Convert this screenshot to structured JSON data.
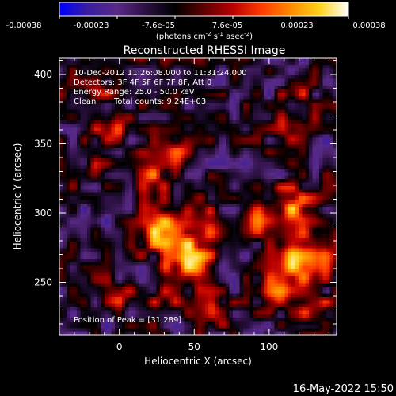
{
  "colorbar": {
    "tick_labels": [
      "-0.00038",
      "-0.00023",
      "-7.6e-05",
      "7.6e-05",
      "0.00023",
      "0.00038"
    ],
    "units_main": "(photons cm",
    "units_exp1": "-2",
    "units_mid": " s",
    "units_exp2": "-1",
    "units_end": " asec",
    "units_exp3": "-2",
    "units_close": ")"
  },
  "title": "Reconstructed RHESSI Image",
  "annotations": {
    "time_range": "10-Dec-2012 11:26:08.000 to 11:31:24.000",
    "detectors": "Detectors: 3F 4F 5F 6F 7F 8F, Att 0",
    "energy": "Energy Range: 25.0 - 50.0 keV",
    "algorithm": "Clean",
    "counts": "Total counts: 9.24E+03",
    "peak": "Position of Peak = [31,289]"
  },
  "footer": {
    "date": "16-May-2022 15:50"
  },
  "colors": {
    "colormap": [
      "#0000ff",
      "#3a1e9e",
      "#5a2a86",
      "#2a1040",
      "#000000",
      "#5e0000",
      "#b80000",
      "#ff3b00",
      "#ff8a00",
      "#ffd21a",
      "#ffffff"
    ]
  },
  "chart_data": {
    "type": "heatmap",
    "title": "Reconstructed RHESSI Image",
    "xlabel": "Heliocentric X (arcsec)",
    "ylabel": "Heliocentric Y (arcsec)",
    "xlim": [
      -40,
      145
    ],
    "ylim": [
      212,
      412
    ],
    "xticks": [
      0,
      50,
      100
    ],
    "yticks": [
      250,
      300,
      350,
      400
    ],
    "colorbar_range": [
      -0.00038,
      0.00038
    ],
    "colorbar_label": "(photons cm^-2 s^-1 asec^-2)",
    "peak_position": [
      31,
      289
    ],
    "blobs": [
      {
        "x": 31,
        "y": 289,
        "sigma": 12,
        "amp": 1.0
      },
      {
        "x": 45,
        "y": 262,
        "sigma": 10,
        "amp": 0.85
      },
      {
        "x": 60,
        "y": 285,
        "sigma": 10,
        "amp": 0.75
      },
      {
        "x": 20,
        "y": 330,
        "sigma": 10,
        "amp": 0.6
      },
      {
        "x": 40,
        "y": 345,
        "sigma": 8,
        "amp": 0.5
      },
      {
        "x": 115,
        "y": 305,
        "sigma": 10,
        "amp": 0.85
      },
      {
        "x": 120,
        "y": 268,
        "sigma": 14,
        "amp": 0.9
      },
      {
        "x": 105,
        "y": 240,
        "sigma": 9,
        "amp": 0.6
      },
      {
        "x": 130,
        "y": 230,
        "sigma": 9,
        "amp": 0.5
      },
      {
        "x": 115,
        "y": 365,
        "sigma": 8,
        "amp": 0.5
      },
      {
        "x": 120,
        "y": 390,
        "sigma": 8,
        "amp": 0.45
      },
      {
        "x": -5,
        "y": 360,
        "sigma": 9,
        "amp": 0.45
      },
      {
        "x": -20,
        "y": 330,
        "sigma": 8,
        "amp": 0.35
      },
      {
        "x": 0,
        "y": 240,
        "sigma": 8,
        "amp": 0.35
      },
      {
        "x": 30,
        "y": 235,
        "sigma": 8,
        "amp": 0.4
      },
      {
        "x": 90,
        "y": 295,
        "sigma": 8,
        "amp": 0.45
      },
      {
        "x": 65,
        "y": 230,
        "sigma": 8,
        "amp": 0.45
      },
      {
        "x": -15,
        "y": 390,
        "sigma": 9,
        "amp": 0.4
      },
      {
        "x": 60,
        "y": 320,
        "sigma": 7,
        "amp": 0.35
      },
      {
        "x": 80,
        "y": 395,
        "sigma": 7,
        "amp": 0.3
      },
      {
        "x": 20,
        "y": 310,
        "sigma": 6,
        "amp": 0.35
      },
      {
        "x": 10,
        "y": 270,
        "sigma": 6,
        "amp": 0.25
      }
    ],
    "background_level": -0.35,
    "noise_amp": 0.45
  }
}
